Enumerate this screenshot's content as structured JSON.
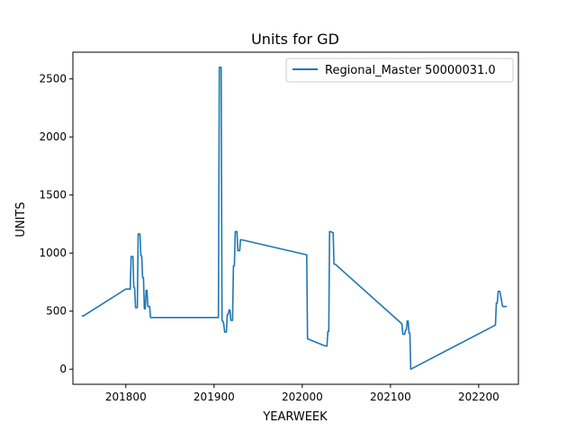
{
  "chart_data": {
    "type": "line",
    "title": "Units for GD",
    "xlabel": "YEARWEEK",
    "ylabel": "UNITS",
    "xlim": [
      201740,
      202245
    ],
    "ylim": [
      -130,
      2730
    ],
    "xticks": [
      201800,
      201900,
      202000,
      202100,
      202200
    ],
    "xtick_labels": [
      "201800",
      "201900",
      "202000",
      "202100",
      "202200"
    ],
    "yticks": [
      0,
      500,
      1000,
      1500,
      2000,
      2500
    ],
    "ytick_labels": [
      "0",
      "500",
      "1000",
      "1500",
      "2000",
      "2500"
    ],
    "grid": false,
    "legend_position": "top-right",
    "series": [
      {
        "name": "Regional_Master 50000031.0",
        "color": "#1f77b4",
        "points": [
          [
            201750,
            460
          ],
          [
            201752,
            460
          ],
          [
            201800,
            690
          ],
          [
            201803,
            690
          ],
          [
            201805,
            690
          ],
          [
            201806,
            970
          ],
          [
            201808,
            970
          ],
          [
            201809,
            710
          ],
          [
            201810,
            700
          ],
          [
            201811,
            530
          ],
          [
            201813,
            530
          ],
          [
            201814,
            1165
          ],
          [
            201816,
            1165
          ],
          [
            201817,
            980
          ],
          [
            201818,
            975
          ],
          [
            201819,
            790
          ],
          [
            201820,
            790
          ],
          [
            201821,
            520
          ],
          [
            201822,
            520
          ],
          [
            201823,
            680
          ],
          [
            201824,
            680
          ],
          [
            201825,
            540
          ],
          [
            201827,
            540
          ],
          [
            201828,
            445
          ],
          [
            201905,
            445
          ],
          [
            201906,
            2600
          ],
          [
            201908,
            2600
          ],
          [
            201909,
            420
          ],
          [
            201910,
            415
          ],
          [
            201911,
            390
          ],
          [
            201912,
            320
          ],
          [
            201914,
            320
          ],
          [
            201915,
            470
          ],
          [
            201916,
            470
          ],
          [
            201917,
            510
          ],
          [
            201918,
            510
          ],
          [
            201919,
            420
          ],
          [
            201921,
            420
          ],
          [
            201922,
            890
          ],
          [
            201923,
            890
          ],
          [
            201924,
            1185
          ],
          [
            201926,
            1185
          ],
          [
            201927,
            1020
          ],
          [
            201929,
            1020
          ],
          [
            201930,
            1115
          ],
          [
            201931,
            1115
          ],
          [
            202005,
            985
          ],
          [
            202006,
            260
          ],
          [
            202007,
            260
          ],
          [
            202008,
            255
          ],
          [
            202026,
            200
          ],
          [
            202028,
            200
          ],
          [
            202029,
            325
          ],
          [
            202030,
            325
          ],
          [
            202031,
            1185
          ],
          [
            202032,
            1185
          ],
          [
            202035,
            1175
          ],
          [
            202036,
            905
          ],
          [
            202037,
            905
          ],
          [
            202038,
            900
          ],
          [
            202113,
            390
          ],
          [
            202114,
            300
          ],
          [
            202116,
            300
          ],
          [
            202117,
            335
          ],
          [
            202118,
            340
          ],
          [
            202119,
            415
          ],
          [
            202120,
            415
          ],
          [
            202121,
            310
          ],
          [
            202122,
            310
          ],
          [
            202123,
            0
          ],
          [
            202219,
            380
          ],
          [
            202220,
            570
          ],
          [
            202221,
            570
          ],
          [
            202222,
            670
          ],
          [
            202224,
            670
          ],
          [
            202226,
            585
          ],
          [
            202227,
            540
          ],
          [
            202232,
            540
          ]
        ]
      }
    ]
  }
}
